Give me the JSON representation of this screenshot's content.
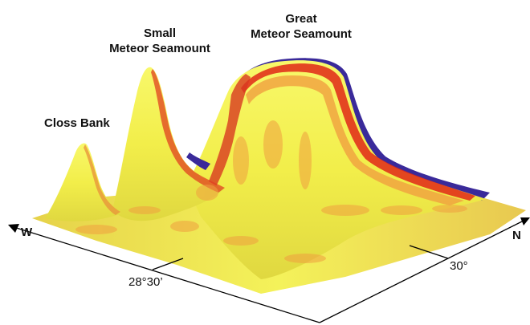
{
  "features": {
    "closs_bank": "Closs Bank",
    "small_meteor": [
      "Small",
      "Meteor Seamount"
    ],
    "great_meteor": [
      "Great",
      "Meteor Seamount"
    ]
  },
  "axes": {
    "west": "W",
    "north": "N",
    "longitude_tick": "28°30’",
    "latitude_tick": "30°"
  },
  "colors": {
    "surface_high": "#f4f44a",
    "surface_mid": "#e8d85a",
    "slope_orange": "#f0a040",
    "slope_red": "#e02818",
    "slope_blue": "#3030c0",
    "axis": "#000000"
  }
}
